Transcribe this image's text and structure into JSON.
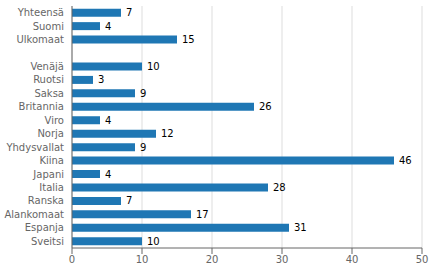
{
  "chart_data": {
    "type": "bar",
    "orientation": "horizontal",
    "categories": [
      "Yhteensä",
      "Suomi",
      "Ulkomaat",
      null,
      "Venäjä",
      "Ruotsi",
      "Saksa",
      "Britannia",
      "Viro",
      "Norja",
      "Yhdysvallat",
      "Kiina",
      "Japani",
      "Italia",
      "Ranska",
      "Alankomaat",
      "Espanja",
      "Sveitsi"
    ],
    "values": [
      7,
      4,
      15,
      null,
      10,
      3,
      9,
      26,
      4,
      12,
      9,
      46,
      4,
      28,
      7,
      17,
      31,
      10
    ],
    "color": "#1f77b4",
    "xlim": [
      0,
      50
    ],
    "xticks": [
      0,
      10,
      20,
      30,
      40,
      50
    ],
    "grid": true,
    "data_labels": true
  }
}
